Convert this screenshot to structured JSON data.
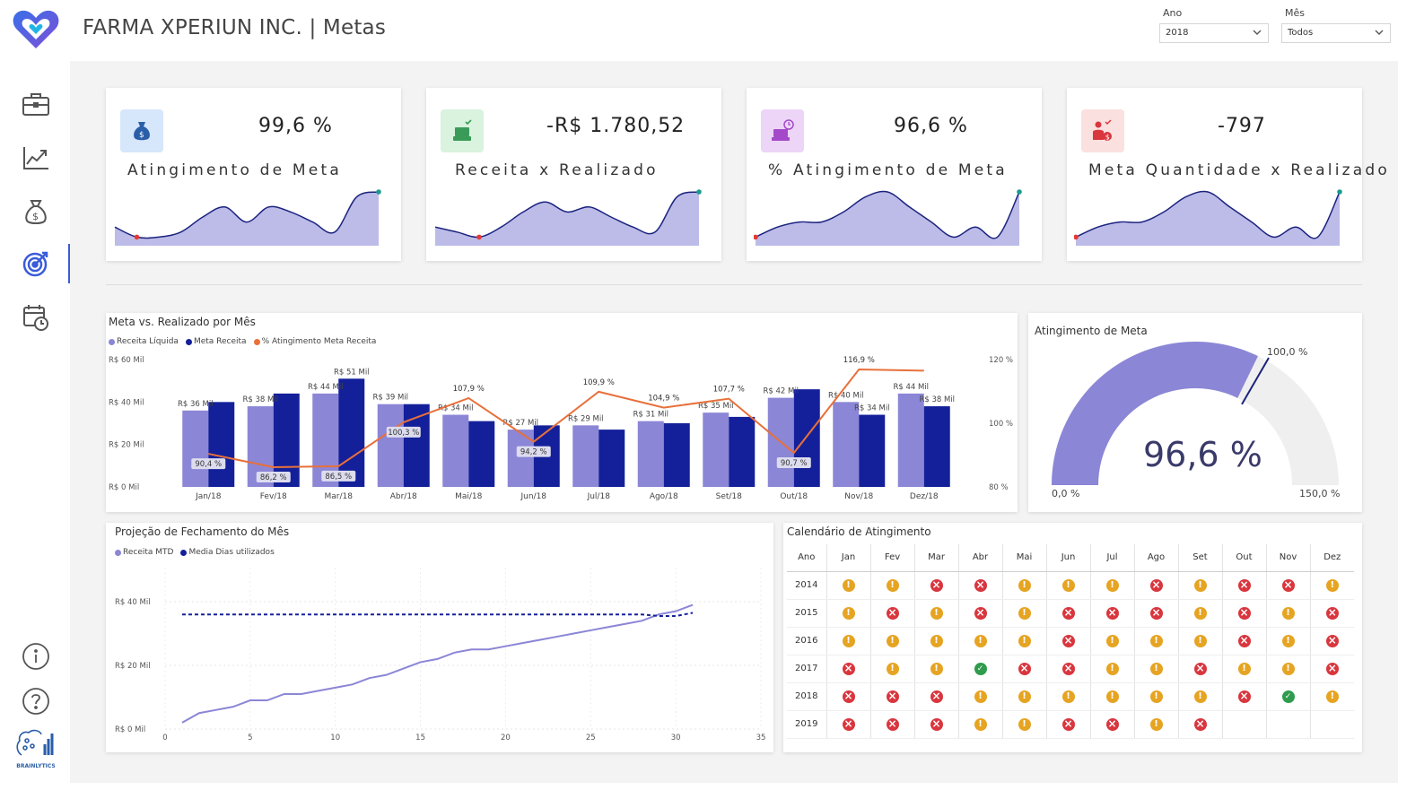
{
  "header": {
    "title": "FARMA XPERIUN INC. | Metas",
    "filters": [
      {
        "label": "Ano",
        "value": "2018"
      },
      {
        "label": "Mês",
        "value": "Todos"
      }
    ]
  },
  "sidebar": {
    "items": [
      {
        "icon": "briefcase-icon"
      },
      {
        "icon": "line-chart-icon"
      },
      {
        "icon": "money-bag-icon"
      },
      {
        "icon": "target-icon",
        "active": true
      },
      {
        "icon": "calendar-clock-icon"
      }
    ],
    "bottom": [
      {
        "icon": "info-icon"
      },
      {
        "icon": "help-icon"
      }
    ],
    "brand": "BRAINLYTICS"
  },
  "colors": {
    "accent": "#3a5bd9",
    "bar_light": "#8b86d6",
    "bar_dark": "#14209a",
    "line_orange": "#e8703a",
    "gauge_fill": "#8b86d6",
    "gauge_bg": "#f0efef"
  },
  "kpis": [
    {
      "value": "99,6 %",
      "label": "Atingimento de Meta",
      "icon": "money-bag-icon",
      "icon_bg": "#d6e6fb"
    },
    {
      "value": "-R$ 1.780,52",
      "label": "Receita x Realizado",
      "icon": "cash-check-icon",
      "icon_bg": "#d9f3de"
    },
    {
      "value": "96,6 %",
      "label": "% Atingimento de Meta",
      "icon": "cash-clock-icon",
      "icon_bg": "#ecd5f6"
    },
    {
      "value": "-797",
      "label": "Meta Quantidade x Realizado",
      "icon": "person-money-icon",
      "icon_bg": "#fbe0e0"
    }
  ],
  "meta_chart": {
    "title": "Meta vs. Realizado por Mês",
    "legend": [
      "Receita Líquida",
      "Meta Receita",
      "% Atingimento Meta Receita"
    ],
    "bar_labels": [
      "R$ 36 Mil",
      "R$ 38 Mil",
      "R$ 44 Mil",
      "R$ 51 Mil",
      "R$ 39 Mil",
      "R$ 34 Mil",
      "R$ 27 Mil",
      "R$ 29 Mil",
      "R$ 31 Mil",
      "R$ 35 Mil",
      "R$ 42 Mil",
      "R$ 40 Mil",
      "R$ 34 Mil",
      "R$ 44 Mil",
      "R$ 38 Mil"
    ],
    "pct_labels": [
      "90,4 %",
      "86,2 %",
      "86,5 %",
      "100,3 %",
      "107,9 %",
      "94,2 %",
      "109,9 %",
      "104,9 %",
      "107,7 %",
      "90,7 %",
      "116,9 %"
    ],
    "y_left_ticks": [
      "R$ 60 Mil",
      "R$ 40 Mil",
      "R$ 20 Mil",
      "R$ 0 Mil"
    ],
    "y_right_ticks": [
      "120 %",
      "100 %",
      "80 %"
    ]
  },
  "gauge": {
    "title": "Atingimento de Meta",
    "value_label": "96,6 %",
    "target_label": "100,0 %",
    "min_label": "0,0 %",
    "max_label": "150,0 %"
  },
  "projection": {
    "title": "Projeção de Fechamento do Mês",
    "legend": [
      "Receita MTD",
      "Media Dias utilizados"
    ],
    "y_ticks": [
      "R$ 40 Mil",
      "R$ 20 Mil",
      "R$ 0 Mil"
    ],
    "x_ticks": [
      "0",
      "5",
      "10",
      "15",
      "20",
      "25",
      "30",
      "35"
    ]
  },
  "calendar": {
    "title": "Calendário de Atingimento",
    "columns": [
      "Ano",
      "Jan",
      "Fev",
      "Mar",
      "Abr",
      "Mai",
      "Jun",
      "Jul",
      "Ago",
      "Set",
      "Out",
      "Nov",
      "Dez"
    ],
    "rows": [
      {
        "year": "2014",
        "status": [
          "warn",
          "warn",
          "bad",
          "bad",
          "warn",
          "warn",
          "warn",
          "bad",
          "warn",
          "bad",
          "bad",
          "warn"
        ]
      },
      {
        "year": "2015",
        "status": [
          "warn",
          "bad",
          "warn",
          "bad",
          "warn",
          "bad",
          "bad",
          "bad",
          "warn",
          "bad",
          "warn",
          "bad"
        ]
      },
      {
        "year": "2016",
        "status": [
          "warn",
          "warn",
          "warn",
          "warn",
          "warn",
          "bad",
          "warn",
          "warn",
          "warn",
          "bad",
          "warn",
          "bad"
        ]
      },
      {
        "year": "2017",
        "status": [
          "bad",
          "warn",
          "warn",
          "ok",
          "bad",
          "bad",
          "warn",
          "warn",
          "bad",
          "warn",
          "warn",
          "bad"
        ]
      },
      {
        "year": "2018",
        "status": [
          "bad",
          "bad",
          "bad",
          "warn",
          "warn",
          "warn",
          "warn",
          "warn",
          "warn",
          "bad",
          "ok",
          "warn"
        ]
      },
      {
        "year": "2019",
        "status": [
          "bad",
          "bad",
          "bad",
          "warn",
          "warn",
          "bad",
          "bad",
          "warn",
          "bad",
          "",
          "",
          ""
        ]
      }
    ]
  },
  "chart_data": [
    {
      "type": "bar",
      "title": "Meta vs. Realizado por Mês",
      "categories": [
        "Jan/18",
        "Fev/18",
        "Mar/18",
        "Abr/18",
        "Mai/18",
        "Jun/18",
        "Jul/18",
        "Ago/18",
        "Set/18",
        "Out/18",
        "Nov/18",
        "Dez/18"
      ],
      "series": [
        {
          "name": "Receita Líquida",
          "values": [
            36,
            38,
            44,
            39,
            34,
            27,
            29,
            31,
            35,
            42,
            40,
            44
          ],
          "axis": "left"
        },
        {
          "name": "Meta Receita",
          "values": [
            40,
            44,
            51,
            39,
            31,
            29,
            27,
            30,
            33,
            46,
            34,
            38
          ],
          "axis": "left"
        },
        {
          "name": "% Atingimento Meta Receita",
          "values": [
            90.4,
            86.2,
            86.5,
            100.3,
            107.9,
            94.2,
            109.9,
            104.9,
            107.7,
            90.7,
            116.9,
            116.5
          ],
          "axis": "right",
          "type": "line"
        }
      ],
      "ylim": [
        0,
        60
      ],
      "y2lim": [
        80,
        120
      ],
      "legend": "top-left"
    },
    {
      "type": "line",
      "title": "Projeção de Fechamento do Mês",
      "x": [
        1,
        2,
        3,
        4,
        5,
        6,
        7,
        8,
        9,
        10,
        11,
        12,
        13,
        14,
        15,
        16,
        17,
        18,
        19,
        20,
        21,
        22,
        23,
        24,
        25,
        26,
        27,
        28,
        29,
        30,
        31
      ],
      "series": [
        {
          "name": "Receita MTD",
          "values": [
            2,
            5,
            6,
            7,
            9,
            9,
            11,
            11,
            12,
            13,
            14,
            16,
            17,
            19,
            21,
            22,
            24,
            25,
            25,
            26,
            27,
            28,
            29,
            30,
            31,
            32,
            33,
            34,
            36,
            37,
            39
          ]
        },
        {
          "name": "Media Dias utilizados",
          "values": [
            36,
            36,
            36,
            36,
            36,
            36,
            36,
            36,
            36,
            36,
            36,
            36,
            36,
            36,
            36,
            36,
            36,
            36,
            36,
            36,
            36,
            36,
            36,
            36,
            36,
            36,
            36,
            36,
            35.5,
            35.5,
            36.5
          ],
          "style": "dashed"
        }
      ],
      "xlim": [
        0,
        35
      ],
      "ylim": [
        0,
        45
      ],
      "legend": "top-left"
    },
    {
      "type": "gauge",
      "title": "Atingimento de Meta",
      "value": 96.6,
      "target": 100.0,
      "min": 0,
      "max": 150
    },
    {
      "type": "area",
      "title": "Atingimento de Meta sparkline",
      "values": [
        3,
        1,
        1,
        2,
        5,
        7,
        4,
        7,
        6,
        4,
        2,
        9,
        10
      ]
    },
    {
      "type": "area",
      "title": "Receita x Realizado sparkline",
      "values": [
        3,
        2,
        1,
        3,
        6,
        8,
        6,
        7,
        5,
        3,
        2,
        9,
        10
      ]
    },
    {
      "type": "area",
      "title": "% Atingimento de Meta sparkline",
      "values": [
        1,
        3,
        4,
        4,
        6,
        9,
        10,
        7,
        4,
        1,
        3,
        1,
        10
      ]
    },
    {
      "type": "area",
      "title": "Meta Quantidade x Realizado sparkline",
      "values": [
        1,
        3,
        4,
        4,
        6,
        9,
        10,
        7,
        4,
        1,
        3,
        1,
        10
      ]
    }
  ]
}
